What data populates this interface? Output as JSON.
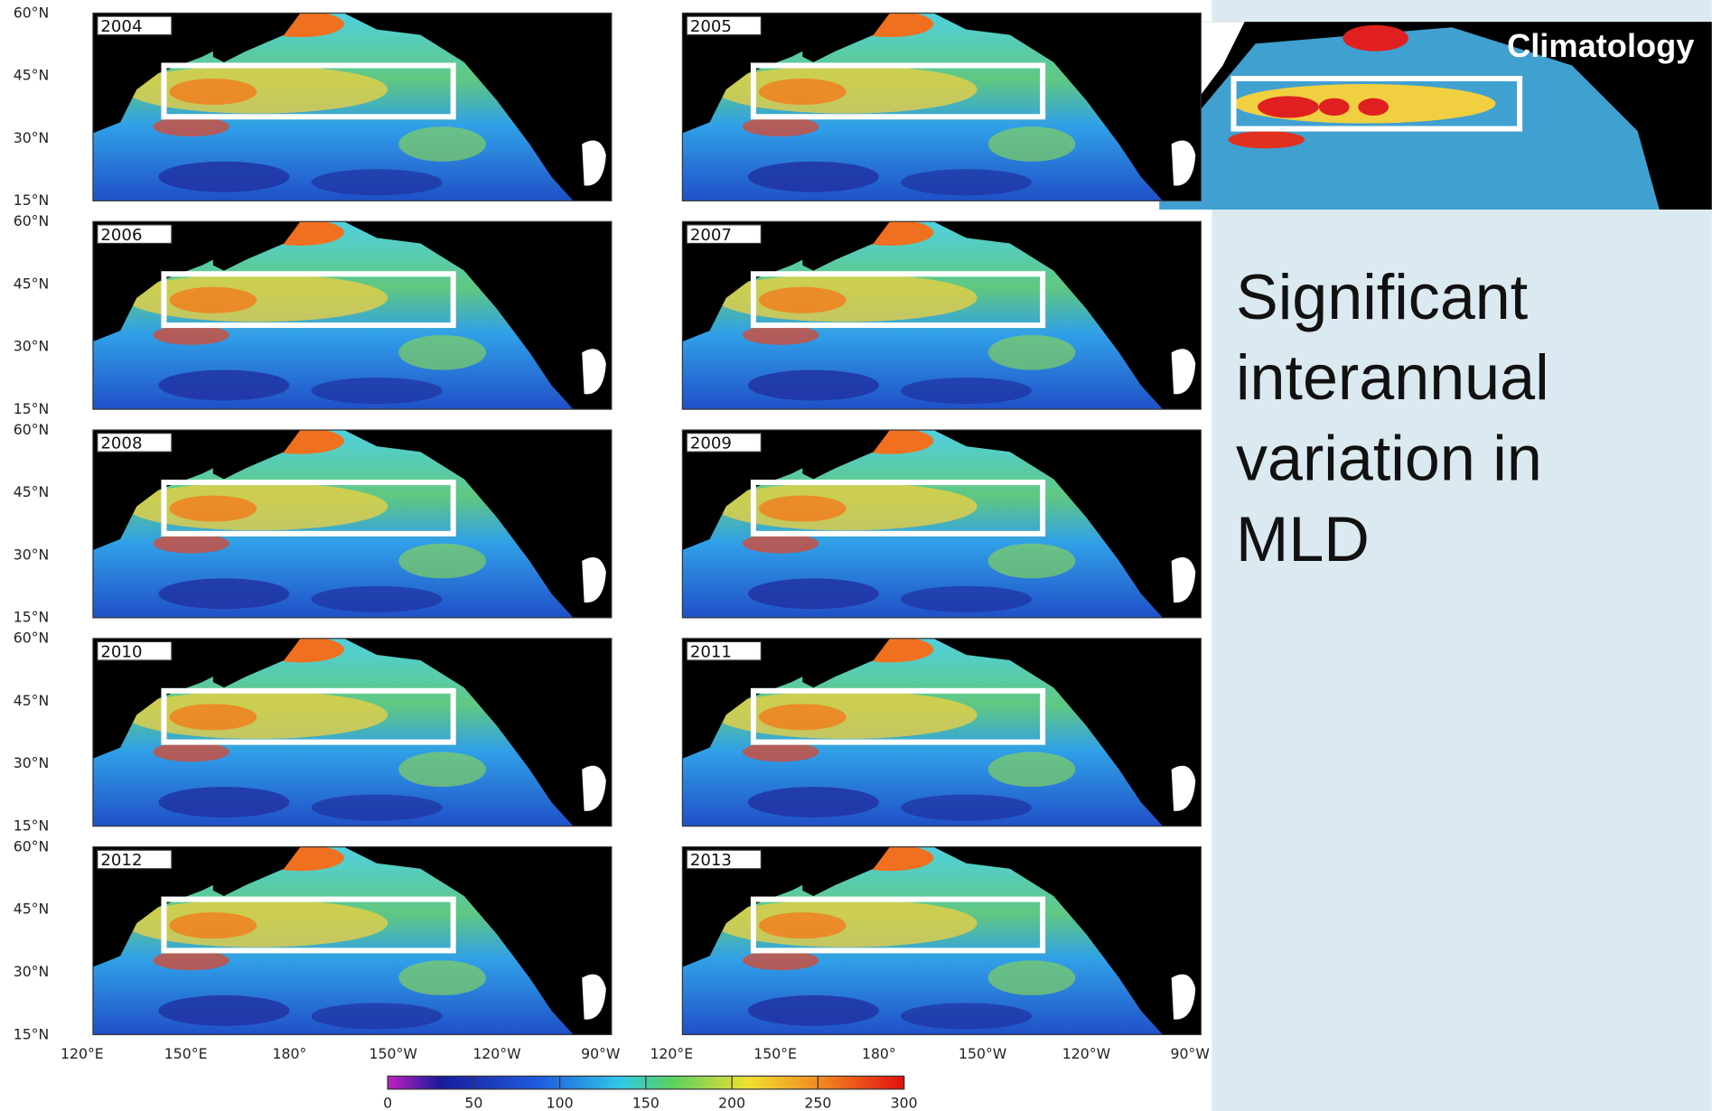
{
  "panels": [
    {
      "year": "2004"
    },
    {
      "year": "2005"
    },
    {
      "year": "2006"
    },
    {
      "year": "2007"
    },
    {
      "year": "2008"
    },
    {
      "year": "2009"
    },
    {
      "year": "2010"
    },
    {
      "year": "2011"
    },
    {
      "year": "2012"
    },
    {
      "year": "2013"
    }
  ],
  "lat_labels": [
    "60°N",
    "45°N",
    "30°N",
    "15°N"
  ],
  "lon_labels": [
    "120°E",
    "150°E",
    "180°",
    "150°W",
    "120°W",
    "90°W"
  ],
  "colorbar": {
    "ticks": [
      0,
      50,
      100,
      150,
      200,
      250,
      300
    ]
  },
  "climatology": {
    "label": "Climatology"
  },
  "caption": {
    "lines": [
      "Significant",
      "interannual",
      "variation in",
      "MLD"
    ]
  }
}
